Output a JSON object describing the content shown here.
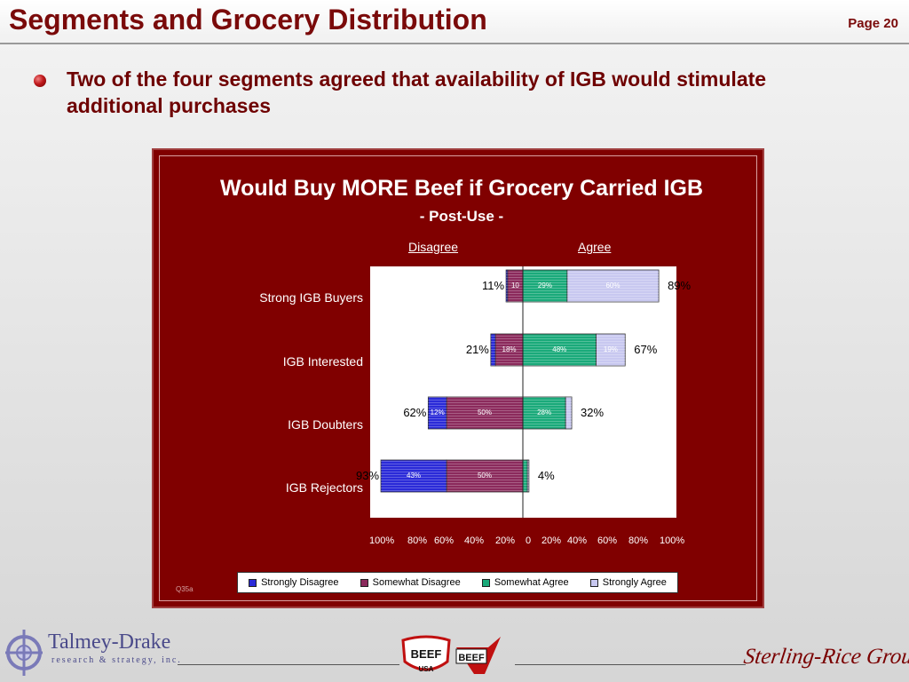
{
  "header": {
    "title": "Segments and Grocery Distribution",
    "page_label": "Page 20"
  },
  "bullet": {
    "text": "Two of the four segments agreed that availability of IGB would stimulate additional purchases"
  },
  "chart_data": {
    "type": "bar",
    "orientation": "horizontal-diverging",
    "title": "Would Buy MORE Beef if Grocery Carried IGB",
    "subtitle": "- Post-Use -",
    "side_labels": {
      "disagree": "Disagree",
      "agree": "Agree"
    },
    "categories": [
      "Strong IGB Buyers",
      "IGB Interested",
      "IGB Doubters",
      "IGB Rejectors"
    ],
    "series": [
      {
        "name": "Strongly Disagree",
        "side": "disagree",
        "values": [
          1,
          3,
          12,
          43
        ],
        "labels": [
          "",
          "",
          "12%",
          "43%"
        ]
      },
      {
        "name": "Somewhat Disagree",
        "side": "disagree",
        "values": [
          10,
          18,
          50,
          50
        ],
        "labels": [
          "10",
          "18%",
          "50%",
          "50%"
        ]
      },
      {
        "name": "Somewhat Agree",
        "side": "agree",
        "values": [
          29,
          48,
          28,
          3
        ],
        "labels": [
          "29%",
          "48%",
          "28%",
          ""
        ]
      },
      {
        "name": "Strongly Agree",
        "side": "agree",
        "values": [
          60,
          19,
          4,
          1
        ],
        "labels": [
          "60%",
          "19%",
          "",
          ""
        ]
      }
    ],
    "totals_disagree": [
      "11%",
      "21%",
      "62%",
      "93%"
    ],
    "totals_agree": [
      "89%",
      "67%",
      "32%",
      "4%"
    ],
    "x_tick_labels": [
      "100%",
      "80%",
      "60%",
      "40%",
      "20%",
      "0",
      "20%",
      "40%",
      "60%",
      "80%",
      "100%"
    ],
    "xlim": [
      -100,
      100
    ],
    "legend_position": "bottom",
    "colors": {
      "Strongly Disagree": "#2a2ad8",
      "Somewhat Disagree": "#8b2a5c",
      "Somewhat Agree": "#1aaa7a",
      "Strongly Agree": "#c8c8f0",
      "frame": "#800000"
    },
    "footnote": "Q35a"
  },
  "footer": {
    "talmey_name": "Talmey-Drake",
    "talmey_sub": "research & strategy, inc.",
    "beef_logo_1": "BEEF",
    "beef_logo_1_sub": "USA",
    "beef_logo_2": "BEEF",
    "sterling": "Sterling-Rice Group"
  }
}
